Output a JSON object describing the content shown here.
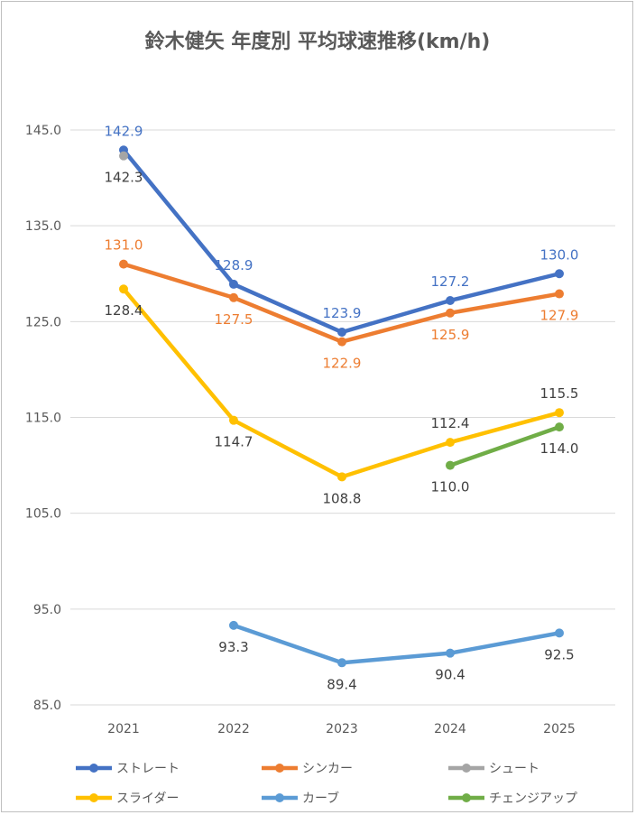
{
  "chart_data": {
    "type": "line",
    "title": "鈴木健矢 年度別 平均球速推移(km/h)",
    "categories": [
      "2021",
      "2022",
      "2023",
      "2024",
      "2025"
    ],
    "ylim": [
      85.0,
      145.0
    ],
    "yticks": [
      "145.0",
      "135.0",
      "125.0",
      "115.0",
      "105.0",
      "95.0",
      "85.0"
    ],
    "ytick_values": [
      145,
      135,
      125,
      115,
      105,
      95,
      85
    ],
    "grid": true,
    "legend_position": "bottom",
    "series": [
      {
        "name": "ストレート",
        "color": "#4472c4",
        "values": [
          142.9,
          128.9,
          123.9,
          127.2,
          130.0
        ],
        "labels": [
          "142.9",
          "128.9",
          "123.9",
          "127.2",
          "130.0"
        ],
        "label_color": "#4472c4",
        "label_pos": [
          "above",
          "above",
          "above",
          "above",
          "above"
        ]
      },
      {
        "name": "シンカー",
        "color": "#ed7d31",
        "values": [
          131.0,
          127.5,
          122.9,
          125.9,
          127.9
        ],
        "labels": [
          "131.0",
          "127.5",
          "122.9",
          "125.9",
          "127.9"
        ],
        "label_color": "#ed7d31",
        "label_pos": [
          "above",
          "below",
          "below",
          "below",
          "below"
        ]
      },
      {
        "name": "シュート",
        "color": "#a5a5a5",
        "values": [
          142.3,
          null,
          null,
          null,
          null
        ],
        "labels": [
          "142.3",
          null,
          null,
          null,
          null
        ],
        "label_color": "#404040",
        "label_pos": [
          "below",
          null,
          null,
          null,
          null
        ]
      },
      {
        "name": "スライダー",
        "color": "#ffc000",
        "values": [
          128.4,
          114.7,
          108.8,
          112.4,
          115.5
        ],
        "labels": [
          "128.4",
          "114.7",
          "108.8",
          "112.4",
          "115.5"
        ],
        "label_color": "#404040",
        "label_pos": [
          "below",
          "below",
          "below",
          "above",
          "above"
        ]
      },
      {
        "name": "カーブ",
        "color": "#5b9bd5",
        "values": [
          null,
          93.3,
          89.4,
          90.4,
          92.5
        ],
        "labels": [
          null,
          "93.3",
          "89.4",
          "90.4",
          "92.5"
        ],
        "label_color": "#404040",
        "label_pos": [
          null,
          "below",
          "below",
          "below",
          "below"
        ]
      },
      {
        "name": "チェンジアップ",
        "color": "#70ad47",
        "values": [
          null,
          null,
          null,
          110.0,
          114.0
        ],
        "labels": [
          null,
          null,
          null,
          "110.0",
          "114.0"
        ],
        "label_color": "#404040",
        "label_pos": [
          null,
          null,
          null,
          "below",
          "below"
        ]
      }
    ]
  }
}
